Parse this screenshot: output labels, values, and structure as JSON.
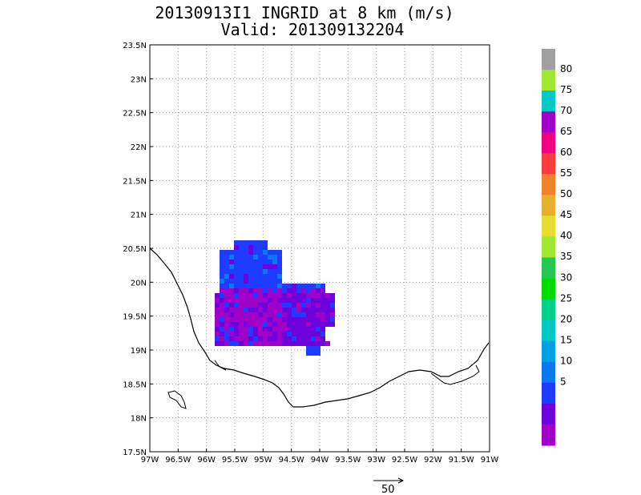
{
  "title": {
    "line1": "20130913I1 INGRID at 8 km (m/s)",
    "line2": "Valid: 201309132204"
  },
  "map": {
    "lon_labels": [
      "97W",
      "96.5W",
      "96W",
      "95.5W",
      "95W",
      "94.5W",
      "94W",
      "93.5W",
      "93W",
      "92.5W",
      "92W",
      "91.5W",
      "91W"
    ],
    "lat_labels": [
      "23.5N",
      "23N",
      "22.5N",
      "22N",
      "21.5N",
      "21N",
      "20.5N",
      "20N",
      "19.5N",
      "19N",
      "18.5N",
      "18N",
      "17.5N"
    ],
    "lon_range": [
      -97,
      -91
    ],
    "lat_range": [
      17.5,
      23.5
    ],
    "grid": true
  },
  "colorbar": {
    "labels": [
      "5",
      "10",
      "15",
      "20",
      "25",
      "30",
      "35",
      "40",
      "45",
      "50",
      "55",
      "60",
      "65",
      "70",
      "75",
      "80"
    ],
    "colors": [
      "#a000c8",
      "#6e00dc",
      "#1e3cff",
      "#0a78f0",
      "#00a0e6",
      "#00c8c8",
      "#00d28c",
      "#00dc00",
      "#23c850",
      "#a0e632",
      "#e6dc32",
      "#e6af2d",
      "#f08228",
      "#fa3c3c",
      "#f00082",
      "#a000c8",
      "#00c8c8",
      "#a0e632",
      "#a0a0a0"
    ]
  },
  "vector_key": {
    "label": "50"
  },
  "colors": {
    "wind_low": "#a000c8",
    "wind_mid": "#6e00dc",
    "wind_high": "#1e3cff",
    "wind_higher": "#0a78f0"
  }
}
